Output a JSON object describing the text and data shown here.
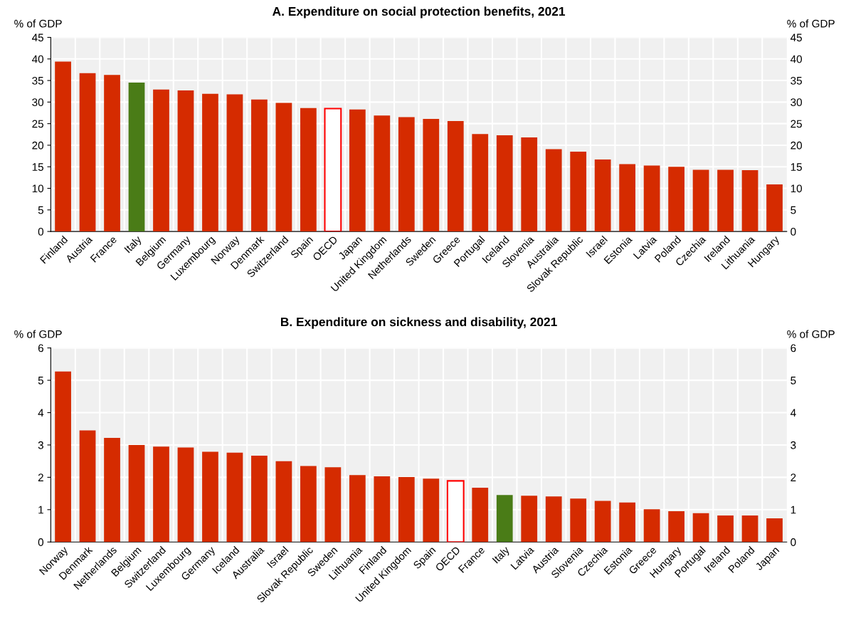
{
  "chart_data": [
    {
      "type": "bar",
      "title": "A. Expenditure on social protection benefits, 2021",
      "ylabel": "% of GDP",
      "y2label": "% of GDP",
      "categories": [
        "Finland",
        "Austria",
        "France",
        "Italy",
        "Belgium",
        "Germany",
        "Luxembourg",
        "Norway",
        "Denmark",
        "Switzerland",
        "Spain",
        "OECD",
        "Japan",
        "United Kingdom",
        "Netherlands",
        "Sweden",
        "Greece",
        "Portugal",
        "Iceland",
        "Slovenia",
        "Australia",
        "Slovak Republic",
        "Israel",
        "Estonia",
        "Latvia",
        "Poland",
        "Czechia",
        "Ireland",
        "Lithuania",
        "Hungary"
      ],
      "values": [
        39.4,
        36.7,
        36.3,
        34.5,
        32.9,
        32.7,
        31.9,
        31.8,
        30.6,
        29.8,
        28.6,
        28.5,
        28.3,
        26.9,
        26.5,
        26.1,
        25.6,
        22.6,
        22.3,
        21.8,
        19.1,
        18.5,
        16.7,
        15.6,
        15.3,
        15.0,
        14.3,
        14.3,
        14.2,
        10.9
      ],
      "colors": [
        "#d52b00",
        "#d52b00",
        "#d52b00",
        "#4a7c17",
        "#d52b00",
        "#d52b00",
        "#d52b00",
        "#d52b00",
        "#d52b00",
        "#d52b00",
        "#d52b00",
        "#ffffff",
        "#d52b00",
        "#d52b00",
        "#d52b00",
        "#d52b00",
        "#d52b00",
        "#d52b00",
        "#d52b00",
        "#d52b00",
        "#d52b00",
        "#d52b00",
        "#d52b00",
        "#d52b00",
        "#d52b00",
        "#d52b00",
        "#d52b00",
        "#d52b00",
        "#d52b00",
        "#d52b00"
      ],
      "ylim": [
        0,
        45
      ],
      "yticks": [
        0,
        5,
        10,
        15,
        20,
        25,
        30,
        35,
        40,
        45
      ],
      "y2lim": [
        0,
        45
      ],
      "y2ticks": [
        0,
        5,
        10,
        15,
        20,
        25,
        30,
        35,
        40,
        45
      ],
      "grid": true
    },
    {
      "type": "bar",
      "title": "B. Expenditure on sickness and disability, 2021",
      "ylabel": "% of GDP",
      "y2label": "% of GDP",
      "categories": [
        "Norway",
        "Denmark",
        "Netherlands",
        "Belgium",
        "Switzerland",
        "Luxembourg",
        "Germany",
        "Iceland",
        "Australia",
        "Israel",
        "Slovak Republic",
        "Sweden",
        "Lithuania",
        "Finland",
        "United Kingdom",
        "Spain",
        "OECD",
        "France",
        "Italy",
        "Latvia",
        "Austria",
        "Slovenia",
        "Czechia",
        "Estonia",
        "Greece",
        "Hungary",
        "Portugal",
        "Ireland",
        "Poland",
        "Japan"
      ],
      "values": [
        5.27,
        3.45,
        3.22,
        3.0,
        2.95,
        2.92,
        2.79,
        2.76,
        2.67,
        2.5,
        2.35,
        2.31,
        2.07,
        2.03,
        2.01,
        1.96,
        1.89,
        1.68,
        1.45,
        1.43,
        1.41,
        1.34,
        1.27,
        1.22,
        1.01,
        0.95,
        0.89,
        0.82,
        0.82,
        0.73
      ],
      "colors": [
        "#d52b00",
        "#d52b00",
        "#d52b00",
        "#d52b00",
        "#d52b00",
        "#d52b00",
        "#d52b00",
        "#d52b00",
        "#d52b00",
        "#d52b00",
        "#d52b00",
        "#d52b00",
        "#d52b00",
        "#d52b00",
        "#d52b00",
        "#d52b00",
        "#ffffff",
        "#d52b00",
        "#4a7c17",
        "#d52b00",
        "#d52b00",
        "#d52b00",
        "#d52b00",
        "#d52b00",
        "#d52b00",
        "#d52b00",
        "#d52b00",
        "#d52b00",
        "#d52b00",
        "#d52b00"
      ],
      "ylim": [
        0,
        6
      ],
      "yticks": [
        0,
        1,
        2,
        3,
        4,
        5,
        6
      ],
      "y2lim": [
        0,
        6
      ],
      "y2ticks": [
        0,
        1,
        2,
        3,
        4,
        5,
        6
      ],
      "grid": true
    }
  ]
}
